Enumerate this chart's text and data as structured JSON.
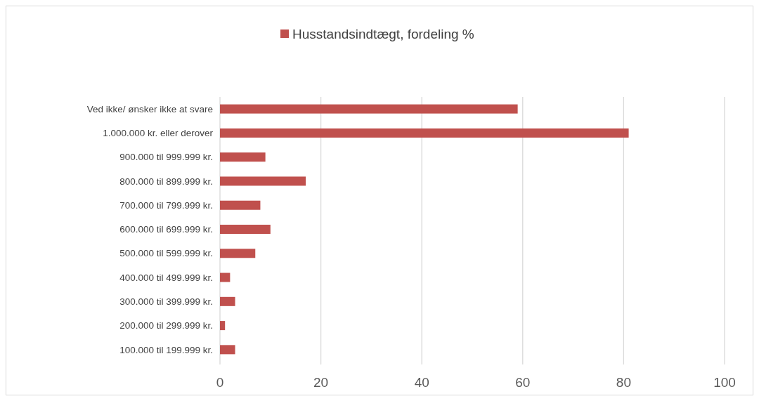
{
  "chart_data": {
    "type": "bar",
    "orientation": "horizontal",
    "categories": [
      "Ved ikke/ ønsker ikke at svare",
      "1.000.000 kr. eller derover",
      "900.000 til 999.999 kr.",
      "800.000 til 899.999 kr.",
      "700.000 til 799.999 kr.",
      "600.000 til 699.999 kr.",
      "500.000 til 599.999 kr.",
      "400.000 til 499.999 kr.",
      "300.000 til 399.999 kr.",
      "200.000 til 299.999 kr.",
      "100.000 til 199.999 kr."
    ],
    "series": [
      {
        "name": "Husstandsindtægt, fordeling %",
        "color": "#c0504d",
        "values": [
          59,
          81,
          9,
          17,
          8,
          10,
          7,
          2,
          3,
          1,
          3
        ]
      }
    ],
    "xlim": [
      0,
      100
    ],
    "xticks": [
      0,
      20,
      40,
      60,
      80,
      100
    ],
    "grid": "x",
    "legend": "top"
  }
}
